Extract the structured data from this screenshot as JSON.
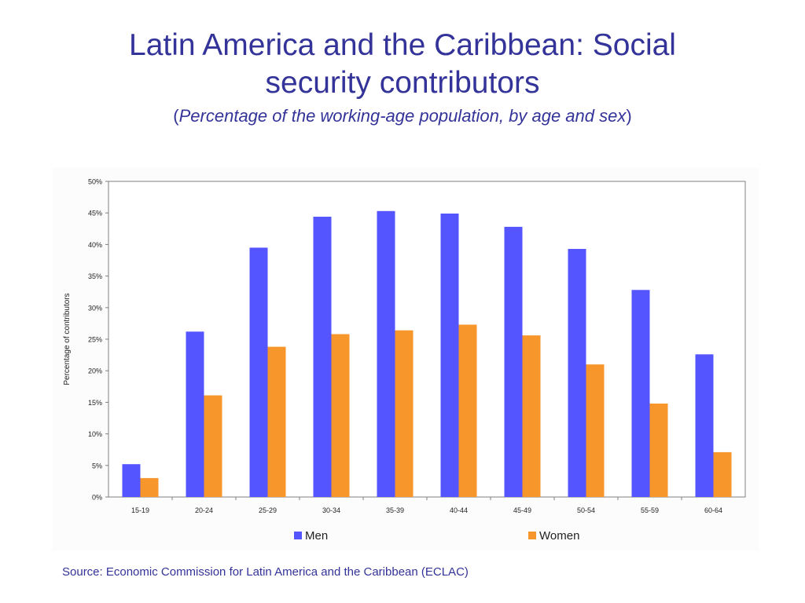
{
  "slide": {
    "title_line1": "Latin America and the Caribbean: Social",
    "title_line2": "security contributors",
    "subtitle_open": "(",
    "subtitle_italic": "Percentage of the working-age population, by age and sex",
    "subtitle_close": ")",
    "source": "Source: Economic Commission for Latin America and the Caribbean (ECLAC)"
  },
  "chart_data": {
    "type": "bar",
    "title": "",
    "xlabel": "",
    "ylabel": "Percentage of contributors",
    "categories": [
      "15-19",
      "20-24",
      "25-29",
      "30-34",
      "35-39",
      "40-44",
      "45-49",
      "50-54",
      "55-59",
      "60-64"
    ],
    "series": [
      {
        "name": "Men",
        "color": "#5555ff",
        "values": [
          5.2,
          26.2,
          39.5,
          44.4,
          45.3,
          44.9,
          42.8,
          39.3,
          32.8,
          22.6
        ]
      },
      {
        "name": "Women",
        "color": "#f7962a",
        "values": [
          3.0,
          16.1,
          23.8,
          25.8,
          26.4,
          27.3,
          25.6,
          21.0,
          14.8,
          7.1
        ]
      }
    ],
    "ylim": [
      0,
      50
    ],
    "yticks": [
      "0%",
      "5%",
      "10%",
      "15%",
      "20%",
      "25%",
      "30%",
      "35%",
      "40%",
      "45%",
      "50%"
    ],
    "grid": false,
    "legend": "bottom"
  }
}
